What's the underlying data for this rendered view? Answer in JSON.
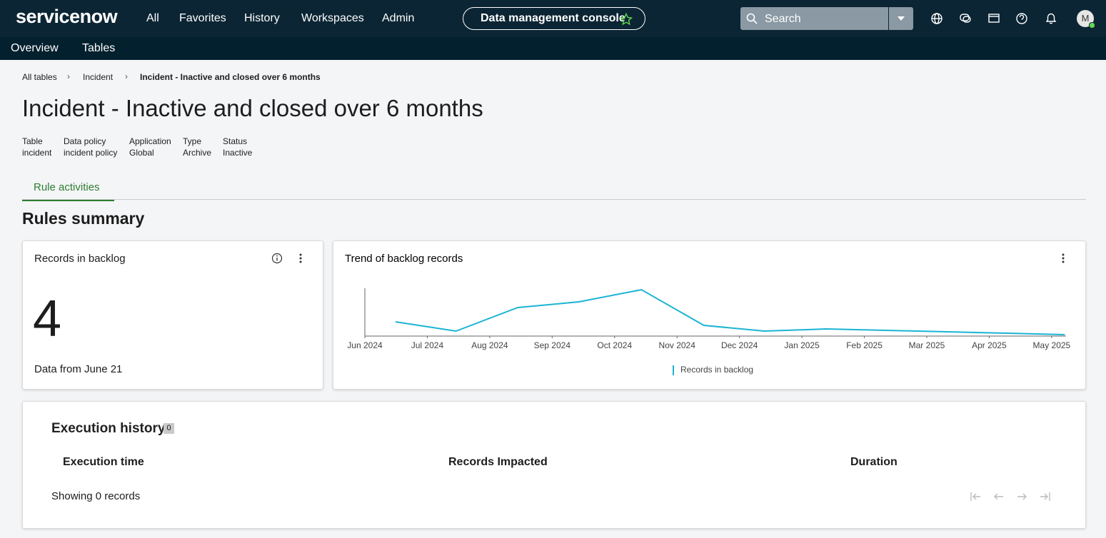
{
  "nav": {
    "logo": "servicenow",
    "menu": [
      "All",
      "Favorites",
      "History",
      "Workspaces",
      "Admin"
    ],
    "app_title": "Data management console",
    "search_placeholder": "Search",
    "avatar": "M"
  },
  "subnav": [
    "Overview",
    "Tables"
  ],
  "breadcrumb": [
    "All tables",
    "Incident",
    "Incident - Inactive and closed over 6 months"
  ],
  "title": "Incident - Inactive and closed over 6 months",
  "meta": [
    {
      "label": "Table",
      "value": "incident"
    },
    {
      "label": "Data policy",
      "value": "incident policy"
    },
    {
      "label": "Application",
      "value": "Global"
    },
    {
      "label": "Type",
      "value": "Archive"
    },
    {
      "label": "Status",
      "value": "Inactive"
    }
  ],
  "tabs": [
    "Rule activities"
  ],
  "section_title": "Rules summary",
  "backlog_card": {
    "title": "Records in backlog",
    "value": 4,
    "footnote": "Data from June 21"
  },
  "chart_data": {
    "type": "line",
    "title": "Trend of backlog records",
    "x": [
      0.49,
      1.46,
      2.45,
      3.43,
      4.43,
      5.43,
      6.4,
      7.39,
      8.35,
      9.32,
      10.29,
      11.21
    ],
    "series": [
      {
        "name": "Records in backlog",
        "color": "#1bb4d4",
        "values": [
          20,
          7,
          40,
          48,
          65,
          15,
          7,
          10,
          8,
          6,
          4,
          2
        ]
      }
    ],
    "xlim": [
      0,
      11.23
    ],
    "ylim": [
      0,
      66
    ],
    "xticks": [
      {
        "value": 0,
        "label": "Jun 2024"
      },
      {
        "value": 1,
        "label": "Jul 2024"
      },
      {
        "value": 2,
        "label": "Aug 2024"
      },
      {
        "value": 3,
        "label": "Sep 2024"
      },
      {
        "value": 4,
        "label": "Oct 2024"
      },
      {
        "value": 5,
        "label": "Nov 2024"
      },
      {
        "value": 6,
        "label": "Dec 2024"
      },
      {
        "value": 7,
        "label": "Jan 2025"
      },
      {
        "value": 8,
        "label": "Feb 2025"
      },
      {
        "value": 9,
        "label": "Mar 2025"
      },
      {
        "value": 10,
        "label": "Apr 2025"
      },
      {
        "value": 11,
        "label": "May 2025"
      }
    ]
  },
  "execution_history": {
    "title": "Execution history",
    "count": 0,
    "columns": [
      "Execution time",
      "Records Impacted",
      "Duration"
    ],
    "footer": "Showing 0 records"
  }
}
